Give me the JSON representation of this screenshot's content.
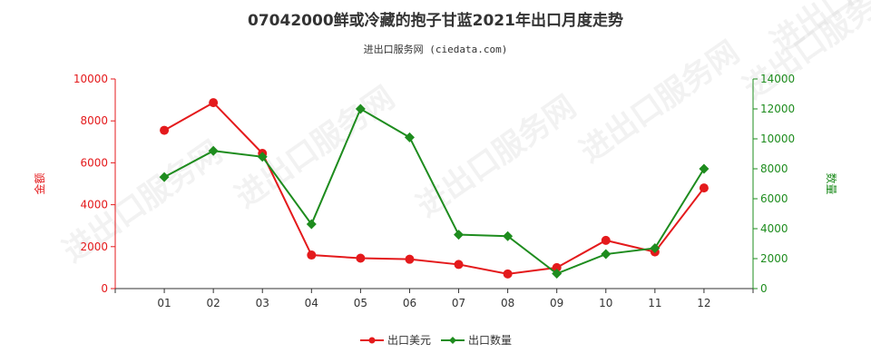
{
  "title": "07042000鲜或冷藏的抱子甘蓝2021年出口月度走势",
  "subtitle": "进出口服务网 (ciedata.com)",
  "watermark": "进出口服务网",
  "colors": {
    "usd": "#e41a1c",
    "qty": "#1e8c1e",
    "left_axis": "#e41a1c",
    "right_axis": "#1e8c1e",
    "axis": "#333333"
  },
  "chart_data": {
    "type": "line",
    "categories": [
      "01",
      "02",
      "03",
      "04",
      "05",
      "06",
      "07",
      "08",
      "09",
      "10",
      "11",
      "12"
    ],
    "y_left": {
      "label": "金额",
      "ylim": [
        0,
        10000
      ],
      "ticks": [
        0,
        2000,
        4000,
        6000,
        8000,
        10000
      ]
    },
    "y_right": {
      "label": "数量",
      "ylim": [
        0,
        14000
      ],
      "ticks": [
        0,
        2000,
        4000,
        6000,
        8000,
        10000,
        12000,
        14000
      ]
    },
    "series": [
      {
        "name": "出口美元",
        "axis": "left",
        "marker": "circle",
        "values": [
          7550,
          8870,
          6450,
          1600,
          1450,
          1400,
          1150,
          700,
          1000,
          2300,
          1750,
          4800
        ]
      },
      {
        "name": "出口数量",
        "axis": "right",
        "marker": "diamond",
        "values": [
          7450,
          9200,
          8800,
          4300,
          12000,
          10100,
          3600,
          3500,
          1000,
          2300,
          2700,
          8000
        ]
      }
    ],
    "grid": false,
    "legend": "bottom-center"
  }
}
